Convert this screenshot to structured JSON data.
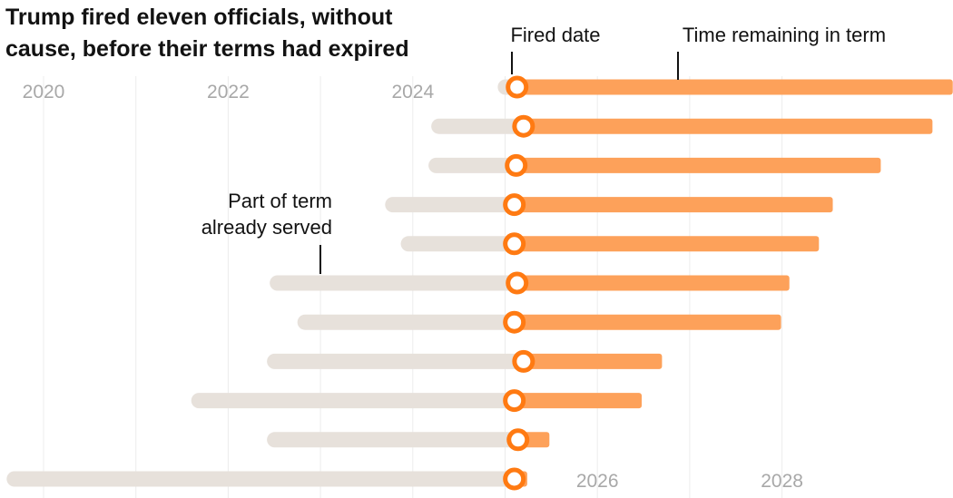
{
  "title_lines": [
    "Trump fired eleven officials, without",
    "cause, before their terms had expired"
  ],
  "colors": {
    "served": "#e7e1db",
    "remaining": "#fda15a",
    "marker": "#ff7a12",
    "grid": "#ececec",
    "tick": "#a8a8a8",
    "text": "#121212"
  },
  "annotations": {
    "fired_date": "Fired date",
    "time_remaining": "Time remaining in term",
    "served_line1": "Part of term",
    "served_line2": "already served"
  },
  "chart_data": {
    "type": "bar",
    "subtype": "horizontal range (dumbbell) timeline",
    "title": "Trump fired eleven officials, without cause, before their terms had expired",
    "x_axis": {
      "min": 2019.6,
      "max": 2029.85,
      "ticks_top": [
        2020,
        2022,
        2024
      ],
      "ticks_bottom": [
        2026,
        2028
      ],
      "grid": true
    },
    "series_labels": {
      "served": "Part of term already served",
      "remaining": "Time remaining in term",
      "marker": "Fired date"
    },
    "rows": [
      {
        "term_start": 2024.92,
        "fired": 2025.13,
        "term_end": 2029.85
      },
      {
        "term_start": 2024.2,
        "fired": 2025.2,
        "term_end": 2029.63
      },
      {
        "term_start": 2024.17,
        "fired": 2025.12,
        "term_end": 2029.07
      },
      {
        "term_start": 2023.7,
        "fired": 2025.1,
        "term_end": 2028.55
      },
      {
        "term_start": 2023.87,
        "fired": 2025.1,
        "term_end": 2028.4
      },
      {
        "term_start": 2022.45,
        "fired": 2025.13,
        "term_end": 2028.08
      },
      {
        "term_start": 2022.75,
        "fired": 2025.1,
        "term_end": 2027.99
      },
      {
        "term_start": 2022.42,
        "fired": 2025.2,
        "term_end": 2026.7
      },
      {
        "term_start": 2021.6,
        "fired": 2025.1,
        "term_end": 2026.48
      },
      {
        "term_start": 2022.42,
        "fired": 2025.14,
        "term_end": 2025.48
      },
      {
        "term_start": 2019.6,
        "fired": 2025.1,
        "term_end": 2025.24
      }
    ]
  }
}
